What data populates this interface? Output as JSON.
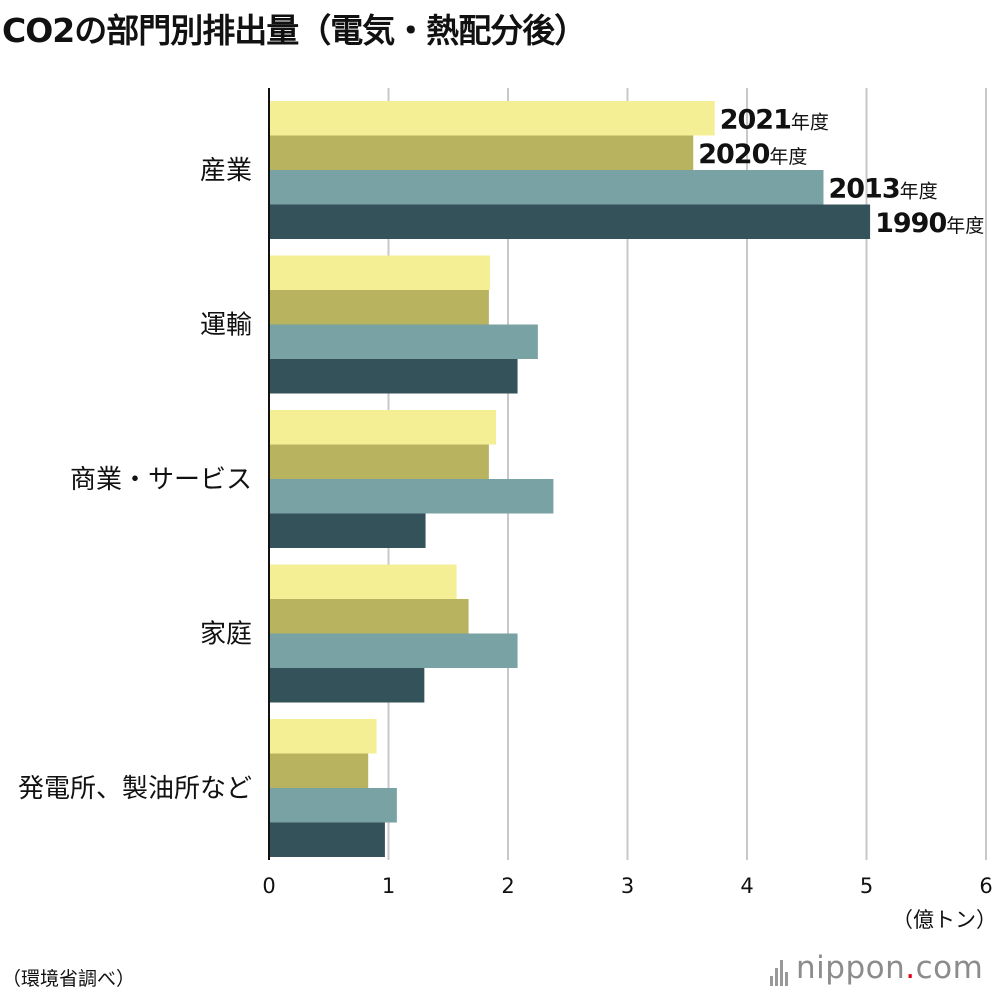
{
  "title": "CO2の部門別排出量（電気・熱配分後）",
  "source": "（環境省調べ）",
  "logo": {
    "text_before": "nippon",
    "dot": ".",
    "text_after": "com",
    "dot_color": "#e60012"
  },
  "chart_data": {
    "type": "bar",
    "orientation": "horizontal",
    "title": "CO2の部門別排出量（電気・熱配分後）",
    "xlabel": "",
    "unit_label": "（億トン）",
    "xlim": [
      0,
      6
    ],
    "x_ticks": [
      0,
      1,
      2,
      3,
      4,
      5,
      6
    ],
    "grid": true,
    "categories": [
      "産業",
      "運輸",
      "商業・サービス",
      "家庭",
      "発電所、製油所など"
    ],
    "series": [
      {
        "name": "2021",
        "suffix": "年度",
        "color": "#f4ef95",
        "values": [
          3.73,
          1.85,
          1.9,
          1.57,
          0.9
        ]
      },
      {
        "name": "2020",
        "suffix": "年度",
        "color": "#b8b35f",
        "values": [
          3.55,
          1.84,
          1.84,
          1.67,
          0.83
        ]
      },
      {
        "name": "2013",
        "suffix": "年度",
        "color": "#79a2a5",
        "values": [
          4.64,
          2.25,
          2.38,
          2.08,
          1.07
        ]
      },
      {
        "name": "1990",
        "suffix": "年度",
        "color": "#34525a",
        "values": [
          5.03,
          2.08,
          1.31,
          1.3,
          0.97
        ]
      }
    ],
    "legend_placement": "inline-end-of-first-group"
  }
}
